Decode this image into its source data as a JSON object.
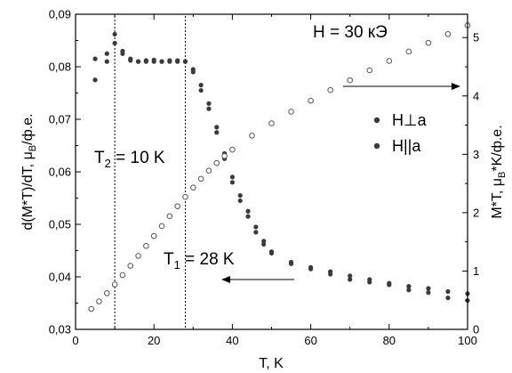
{
  "chart_data": {
    "type": "scatter",
    "title": "",
    "xlabel": "T, K",
    "ylabel_left": "d(M*T)/dT, μ_B/ф.е.",
    "ylabel_right": "M*T, μ_B*K/ф.е.",
    "xlim": [
      0,
      100
    ],
    "ylim_left": [
      0.03,
      0.09
    ],
    "ylim_right": [
      0,
      5.4
    ],
    "xticks": [
      0,
      20,
      40,
      60,
      80,
      100
    ],
    "xtick_labels": [
      "0",
      "20",
      "40",
      "60",
      "80",
      "100"
    ],
    "yticks_left": [
      0.03,
      0.04,
      0.05,
      0.06,
      0.07,
      0.08,
      0.09
    ],
    "ytick_labels_left": [
      "0,03",
      "0,04",
      "0,05",
      "0,06",
      "0,07",
      "0,08",
      "0,09"
    ],
    "yticks_right": [
      0,
      1,
      2,
      3,
      4,
      5
    ],
    "ytick_labels_right": [
      "0",
      "1",
      "2",
      "3",
      "4",
      "5"
    ],
    "grid": false,
    "legend_position": "right",
    "colors": {
      "derivative_points": "#3a3a3a",
      "mt_curve": "#555555"
    },
    "series": [
      {
        "name": "H⊥a",
        "axis": "left",
        "marker": "filled-circle",
        "x": [
          5,
          8,
          10,
          12,
          14,
          16,
          18,
          20,
          22,
          24,
          26,
          28,
          30,
          32,
          34,
          36,
          38,
          40,
          42,
          44,
          46,
          48,
          50,
          55,
          60,
          65,
          70,
          75,
          80,
          85,
          90,
          95,
          100
        ],
        "y": [
          0.0815,
          0.081,
          0.0862,
          0.0825,
          0.0812,
          0.081,
          0.0812,
          0.0813,
          0.081,
          0.0812,
          0.0812,
          0.081,
          0.079,
          0.0755,
          0.072,
          0.0675,
          0.0625,
          0.058,
          0.0545,
          0.0515,
          0.0485,
          0.0462,
          0.0445,
          0.0425,
          0.0415,
          0.0405,
          0.0395,
          0.039,
          0.0385,
          0.0375,
          0.037,
          0.036,
          0.0355
        ]
      },
      {
        "name": "H||a",
        "axis": "left",
        "marker": "filled-circle",
        "x": [
          5,
          8,
          10,
          12,
          14,
          16,
          18,
          20,
          22,
          24,
          26,
          28,
          30,
          32,
          34,
          36,
          38,
          40,
          42,
          44,
          46,
          48,
          50,
          55,
          60,
          65,
          70,
          75,
          80,
          85,
          90,
          95,
          100
        ],
        "y": [
          0.0775,
          0.0825,
          0.0845,
          0.083,
          0.0815,
          0.081,
          0.081,
          0.081,
          0.081,
          0.081,
          0.081,
          0.081,
          0.0795,
          0.0765,
          0.073,
          0.0685,
          0.0635,
          0.059,
          0.0555,
          0.0525,
          0.0495,
          0.0468,
          0.0448,
          0.0428,
          0.0418,
          0.041,
          0.0402,
          0.0395,
          0.0388,
          0.0382,
          0.0378,
          0.0372,
          0.0368
        ]
      },
      {
        "name": "",
        "axis": "right",
        "marker": "open-circle",
        "x": [
          4,
          6,
          8,
          10,
          12,
          14,
          16,
          18,
          20,
          22,
          24,
          26,
          28,
          30,
          32,
          34,
          36,
          38,
          40,
          45,
          50,
          55,
          60,
          65,
          70,
          75,
          80,
          85,
          90,
          95,
          100
        ],
        "y": [
          0.35,
          0.48,
          0.62,
          0.77,
          0.93,
          1.09,
          1.26,
          1.43,
          1.6,
          1.77,
          1.94,
          2.11,
          2.27,
          2.43,
          2.58,
          2.72,
          2.85,
          2.97,
          3.08,
          3.32,
          3.53,
          3.73,
          3.92,
          4.1,
          4.27,
          4.44,
          4.6,
          4.76,
          4.91,
          5.06,
          5.21
        ]
      }
    ],
    "markers": [
      {
        "label": "T₂ = 10 K",
        "x": 10
      },
      {
        "label": "T₁ = 28 K",
        "x": 28
      }
    ],
    "annotations": {
      "field": "H = 30 кЭ",
      "t2_main": "T",
      "t2_sub": "2",
      "t2_rest": " = 10 K",
      "t1_main": "T",
      "t1_sub": "1",
      "t1_rest": " = 28 K"
    },
    "axis_title_parts": {
      "ylabel_left_main": "d(M*T)/dT, μ",
      "ylabel_left_sub": "B",
      "ylabel_left_tail": "/ф.е.",
      "ylabel_right_main": "M*T, μ",
      "ylabel_right_sub": "B",
      "ylabel_right_tail": "*K/ф.е."
    },
    "legend": [
      {
        "label": "H⊥a"
      },
      {
        "label": "H||a"
      }
    ]
  }
}
